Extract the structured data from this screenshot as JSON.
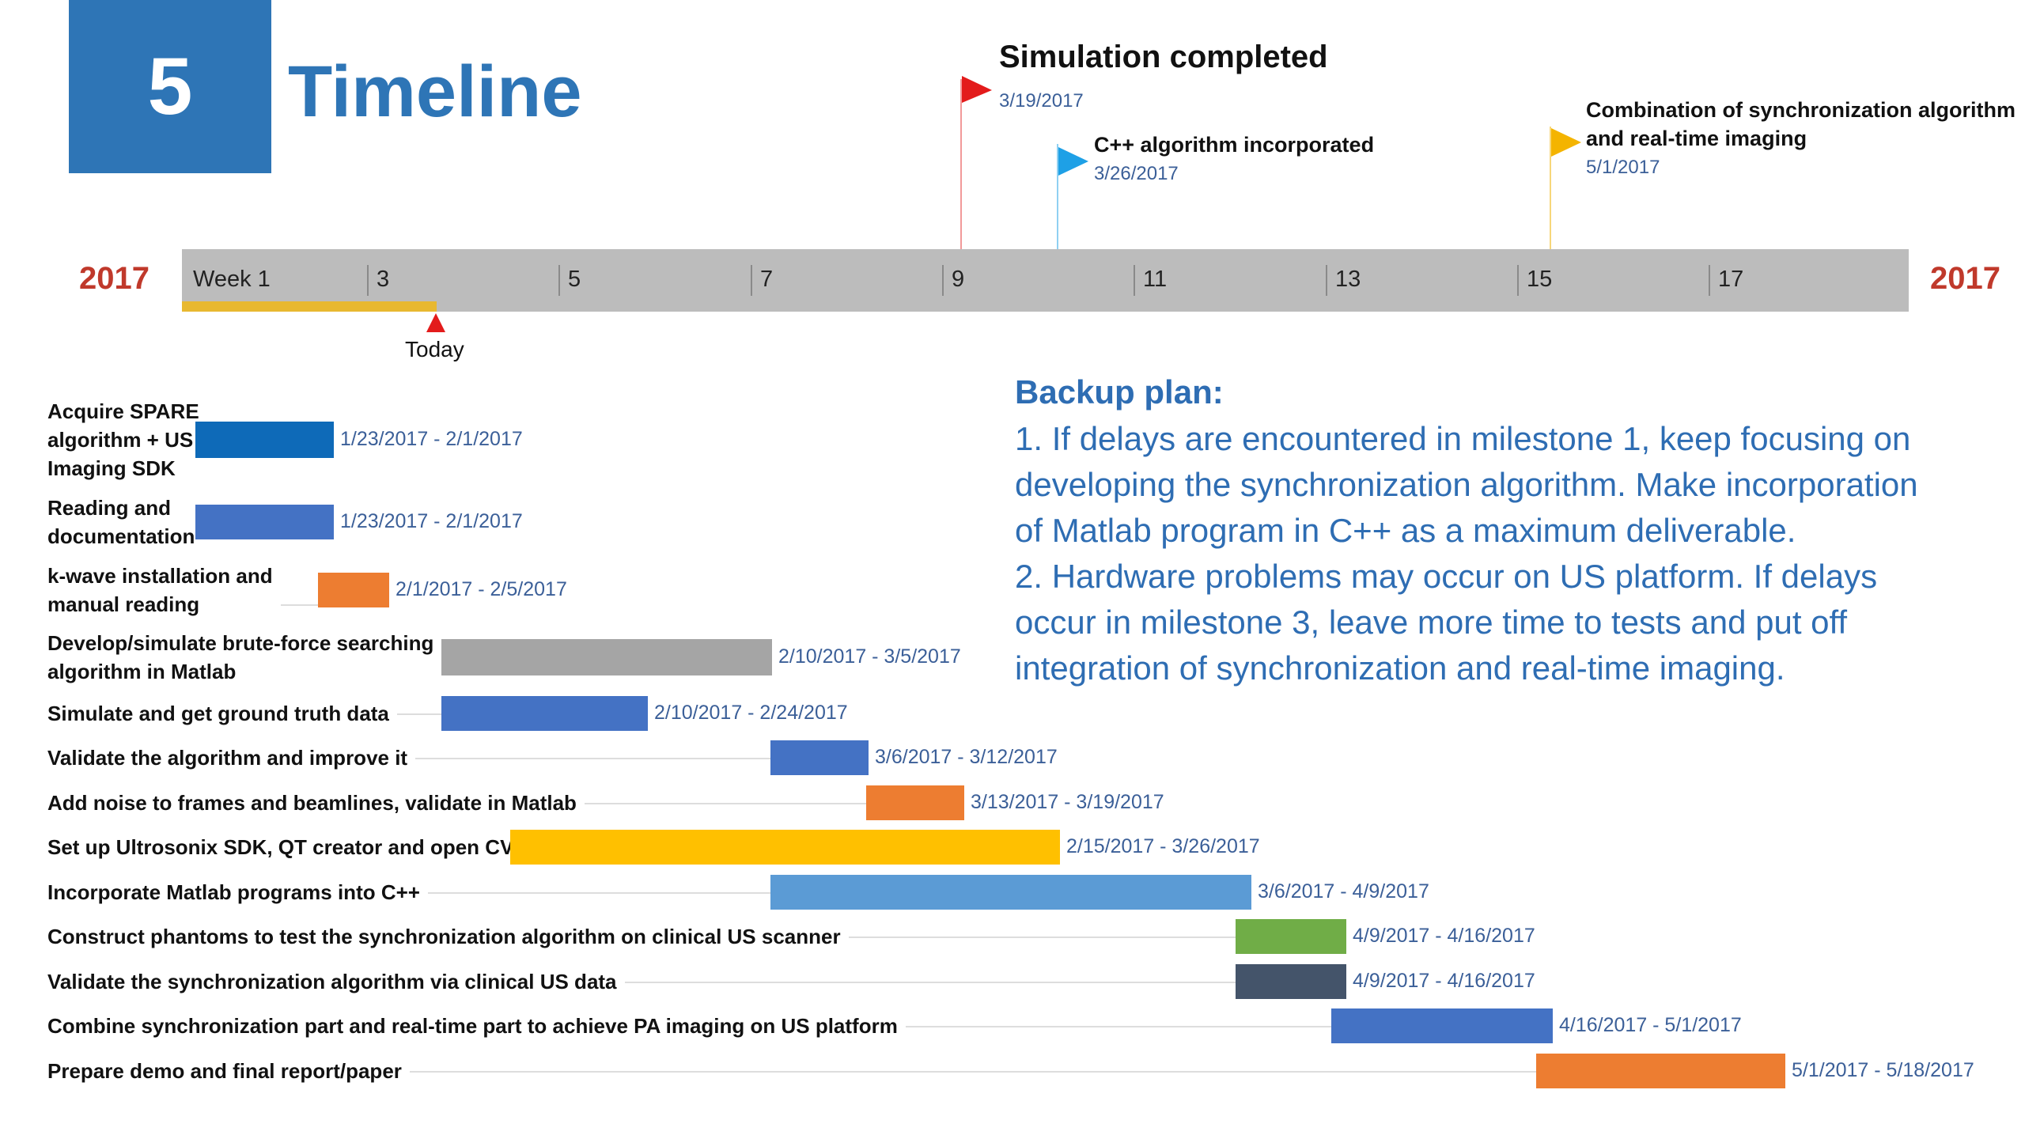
{
  "header": {
    "section_number": "5",
    "title": "Timeline"
  },
  "milestones": [
    {
      "title": "Simulation completed",
      "date": "3/19/2017",
      "color": "#e31b1b"
    },
    {
      "title": "C++ algorithm incorporated",
      "date": "3/26/2017",
      "color": "#1ea0e6"
    },
    {
      "title_lines": [
        "Combination of synchronization algorithm",
        "and real-time imaging"
      ],
      "date": "5/1/2017",
      "color": "#f4b400"
    }
  ],
  "timeline": {
    "year_left": "2017",
    "year_right": "2017",
    "week_labels": [
      "Week 1",
      "3",
      "5",
      "7",
      "9",
      "11",
      "13",
      "15",
      "17"
    ],
    "today_label": "Today",
    "progress_color": "#e8b830",
    "today_color": "#e31b1b"
  },
  "tasks": [
    {
      "label_lines": [
        "Acquire SPARE",
        "algorithm + US",
        "Imaging SDK"
      ],
      "dates": "1/23/2017 - 2/1/2017",
      "color": "#0e6ab8"
    },
    {
      "label_lines": [
        "Reading and",
        "documentation"
      ],
      "dates": "1/23/2017 - 2/1/2017",
      "color": "#4472c4"
    },
    {
      "label_lines": [
        "k-wave installation and",
        "manual reading"
      ],
      "dates": "2/1/2017 - 2/5/2017",
      "color": "#ed7d31"
    },
    {
      "label_lines": [
        "Develop/simulate brute-force searching",
        "algorithm in Matlab"
      ],
      "dates": "2/10/2017 - 3/5/2017",
      "color": "#a5a5a5"
    },
    {
      "label_lines": [
        "Simulate and get ground truth data"
      ],
      "dates": "2/10/2017 - 2/24/2017",
      "color": "#4472c4"
    },
    {
      "label_lines": [
        "Validate the algorithm and improve it"
      ],
      "dates": "3/6/2017 - 3/12/2017",
      "color": "#4472c4"
    },
    {
      "label_lines": [
        "Add noise to frames and beamlines, validate in Matlab"
      ],
      "dates": "3/13/2017 - 3/19/2017",
      "color": "#ed7d31"
    },
    {
      "label_lines": [
        "Set up Ultrosonix SDK, QT creator and open CV"
      ],
      "dates": "2/15/2017 - 3/26/2017",
      "color": "#ffc000"
    },
    {
      "label_lines": [
        "Incorporate Matlab programs into C++"
      ],
      "dates": "3/6/2017 - 4/9/2017",
      "color": "#5b9bd5"
    },
    {
      "label_lines": [
        "Construct phantoms to test the synchronization algorithm on clinical US scanner"
      ],
      "dates": "4/9/2017 - 4/16/2017",
      "color": "#70ad47"
    },
    {
      "label_lines": [
        "Validate the synchronization algorithm via clinical US data"
      ],
      "dates": "4/9/2017 - 4/16/2017",
      "color": "#44546a"
    },
    {
      "label_lines": [
        "Combine synchronization part and real-time part to achieve PA imaging on US platform"
      ],
      "dates": "4/16/2017 - 5/1/2017",
      "color": "#4472c4"
    },
    {
      "label_lines": [
        "Prepare demo and final report/paper"
      ],
      "dates": "5/1/2017 - 5/18/2017",
      "color": "#ed7d31"
    }
  ],
  "backup_plan": {
    "title": "Backup plan:",
    "lines": [
      "1. If delays are encountered in milestone 1, keep focusing on",
      "developing the synchronization algorithm. Make incorporation",
      "of Matlab program in C++ as a maximum deliverable.",
      "2. Hardware problems may occur on US platform.  If delays",
      "occur in milestone 3, leave more time to tests and put off",
      "integration of synchronization and real-time imaging."
    ]
  }
}
